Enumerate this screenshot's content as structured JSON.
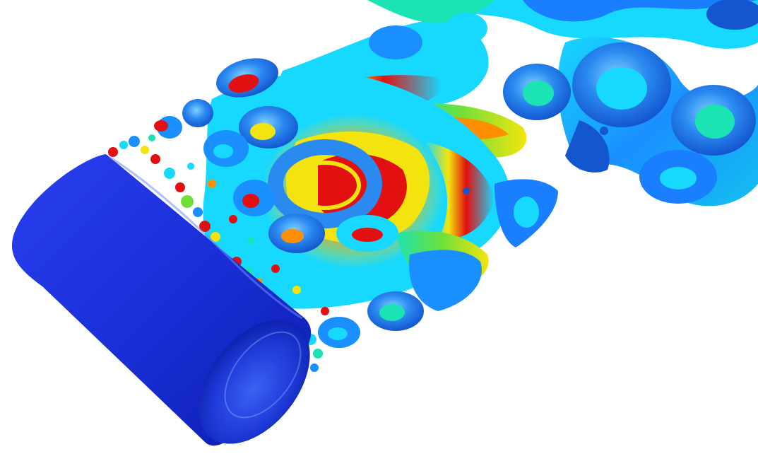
{
  "figure": {
    "kind": "cfd-vortex-isosurface",
    "subject": "cylinder",
    "wake": "vortex-tubes",
    "colormap": [
      "#0a20d8",
      "#1a7fff",
      "#17d8ff",
      "#1be3b3",
      "#6fe03a",
      "#f4e40d",
      "#ff8f00",
      "#e21010"
    ],
    "background": "#ffffff",
    "cylinder_color": "#1f38e6"
  }
}
